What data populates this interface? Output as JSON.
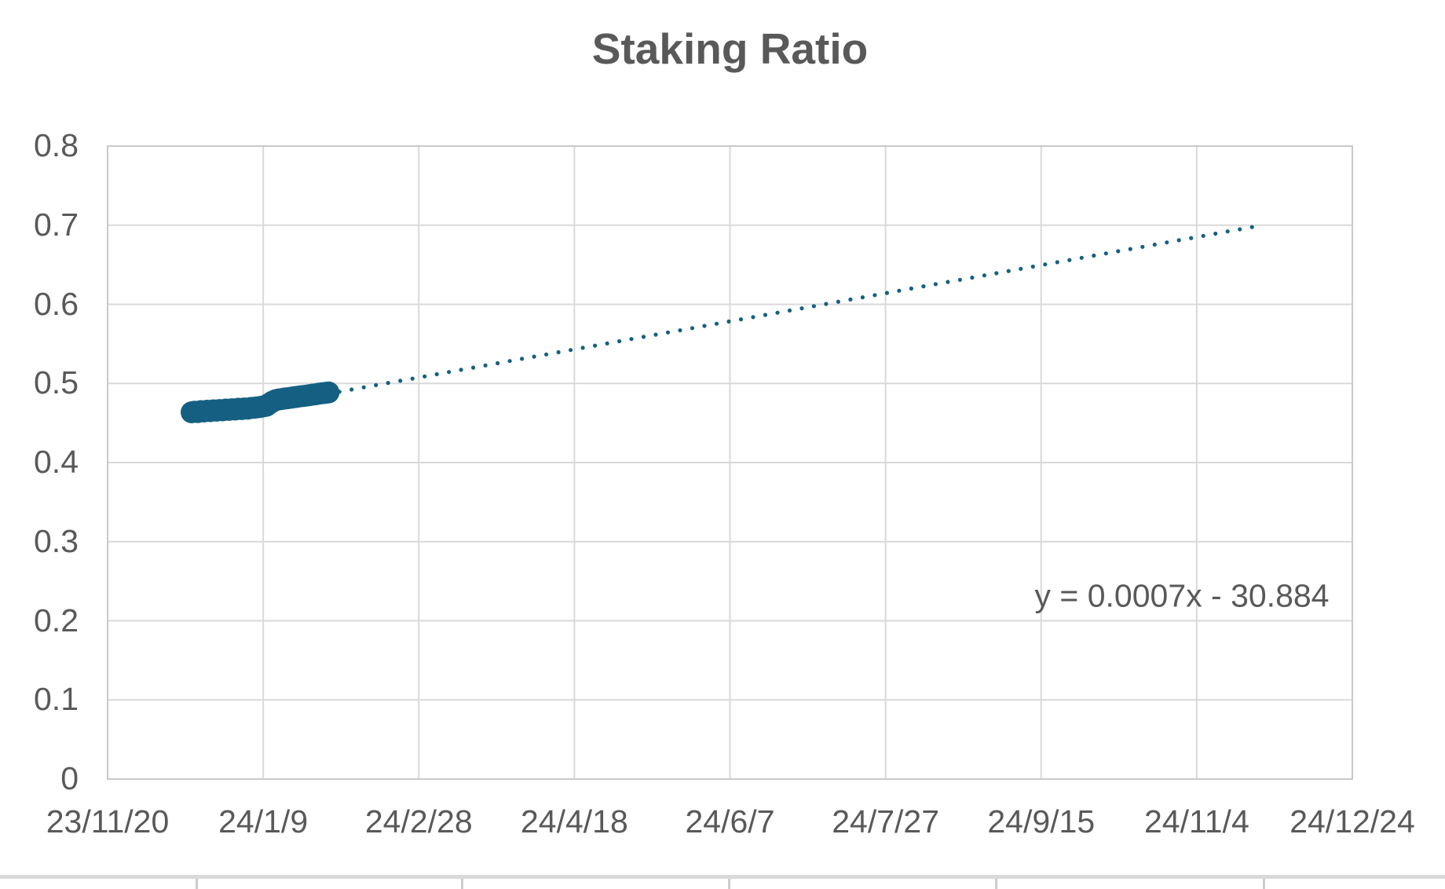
{
  "chart_data": {
    "type": "scatter",
    "title": "Staking Ratio",
    "x_axis": {
      "tick_labels": [
        "23/11/20",
        "24/1/9",
        "24/2/28",
        "24/4/18",
        "24/6/7",
        "24/7/27",
        "24/9/15",
        "24/11/4",
        "24/12/24"
      ],
      "tick_interval_days": 50,
      "range_days": [
        0,
        400
      ],
      "origin_date": "23/11/20"
    },
    "y_axis": {
      "tick_labels": [
        "0",
        "0.1",
        "0.2",
        "0.3",
        "0.4",
        "0.5",
        "0.6",
        "0.7",
        "0.8"
      ],
      "tick_values": [
        0,
        0.1,
        0.2,
        0.3,
        0.4,
        0.5,
        0.6,
        0.7,
        0.8
      ],
      "ylim": [
        0,
        0.8
      ]
    },
    "grid": true,
    "legend": false,
    "series": [
      {
        "name": "Staking Ratio",
        "color": "#156082",
        "marker_radius_px": 14,
        "points": [
          {
            "date": "23/12/17",
            "day": 27,
            "value": 0.4635
          },
          {
            "date": "23/12/18",
            "day": 28,
            "value": 0.4643
          },
          {
            "date": "23/12/19",
            "day": 29,
            "value": 0.4638
          },
          {
            "date": "23/12/20",
            "day": 30,
            "value": 0.465
          },
          {
            "date": "23/12/21",
            "day": 31,
            "value": 0.4645
          },
          {
            "date": "23/12/22",
            "day": 32,
            "value": 0.4655
          },
          {
            "date": "23/12/23",
            "day": 33,
            "value": 0.465
          },
          {
            "date": "23/12/24",
            "day": 34,
            "value": 0.466
          },
          {
            "date": "23/12/25",
            "day": 35,
            "value": 0.4656
          },
          {
            "date": "23/12/26",
            "day": 36,
            "value": 0.4664
          },
          {
            "date": "23/12/27",
            "day": 37,
            "value": 0.466
          },
          {
            "date": "23/12/28",
            "day": 38,
            "value": 0.467
          },
          {
            "date": "23/12/29",
            "day": 39,
            "value": 0.4666
          },
          {
            "date": "23/12/30",
            "day": 40,
            "value": 0.4674
          },
          {
            "date": "23/12/31",
            "day": 41,
            "value": 0.467
          },
          {
            "date": "24/1/1",
            "day": 42,
            "value": 0.468
          },
          {
            "date": "24/1/2",
            "day": 43,
            "value": 0.4676
          },
          {
            "date": "24/1/3",
            "day": 44,
            "value": 0.4684
          },
          {
            "date": "24/1/4",
            "day": 45,
            "value": 0.4681
          },
          {
            "date": "24/1/5",
            "day": 46,
            "value": 0.469
          },
          {
            "date": "24/1/6",
            "day": 47,
            "value": 0.4692
          },
          {
            "date": "24/1/7",
            "day": 48,
            "value": 0.4697
          },
          {
            "date": "24/1/8",
            "day": 49,
            "value": 0.4702
          },
          {
            "date": "24/1/9",
            "day": 50,
            "value": 0.471
          },
          {
            "date": "24/1/10",
            "day": 51,
            "value": 0.4718
          },
          {
            "date": "24/1/11",
            "day": 52,
            "value": 0.4745
          },
          {
            "date": "24/1/12",
            "day": 53,
            "value": 0.477
          },
          {
            "date": "24/1/13",
            "day": 54,
            "value": 0.4788
          },
          {
            "date": "24/1/14",
            "day": 55,
            "value": 0.4797
          },
          {
            "date": "24/1/15",
            "day": 56,
            "value": 0.4803
          },
          {
            "date": "24/1/16",
            "day": 57,
            "value": 0.481
          },
          {
            "date": "24/1/17",
            "day": 58,
            "value": 0.4814
          },
          {
            "date": "24/1/18",
            "day": 59,
            "value": 0.482
          },
          {
            "date": "24/1/19",
            "day": 60,
            "value": 0.4826
          },
          {
            "date": "24/1/20",
            "day": 61,
            "value": 0.4832
          },
          {
            "date": "24/1/21",
            "day": 62,
            "value": 0.4838
          },
          {
            "date": "24/1/22",
            "day": 63,
            "value": 0.4842
          },
          {
            "date": "24/1/23",
            "day": 64,
            "value": 0.4847
          },
          {
            "date": "24/1/24",
            "day": 65,
            "value": 0.4853
          },
          {
            "date": "24/1/25",
            "day": 66,
            "value": 0.4859
          },
          {
            "date": "24/1/26",
            "day": 67,
            "value": 0.4864
          },
          {
            "date": "24/1/27",
            "day": 68,
            "value": 0.4871
          },
          {
            "date": "24/1/28",
            "day": 69,
            "value": 0.4876
          },
          {
            "date": "24/1/29",
            "day": 70,
            "value": 0.4881
          },
          {
            "date": "24/1/30",
            "day": 71,
            "value": 0.4886
          }
        ]
      }
    ],
    "trendline": {
      "equation": "y = 0.0007x - 30.884",
      "style": "dotted",
      "color": "#156082",
      "start_day": 74.5,
      "end_day": 369,
      "start_value": 0.4895,
      "end_value": 0.6985,
      "dot_spacing_days": 3.91,
      "dot_radius_px": 2.6
    },
    "colors": {
      "marker": "#156082",
      "gridline": "#d9d9d9",
      "plot_border": "#c9c9c9",
      "title_text": "#595959",
      "axis_text": "#595959",
      "equation_text": "#595959",
      "background": "#ffffff"
    }
  }
}
